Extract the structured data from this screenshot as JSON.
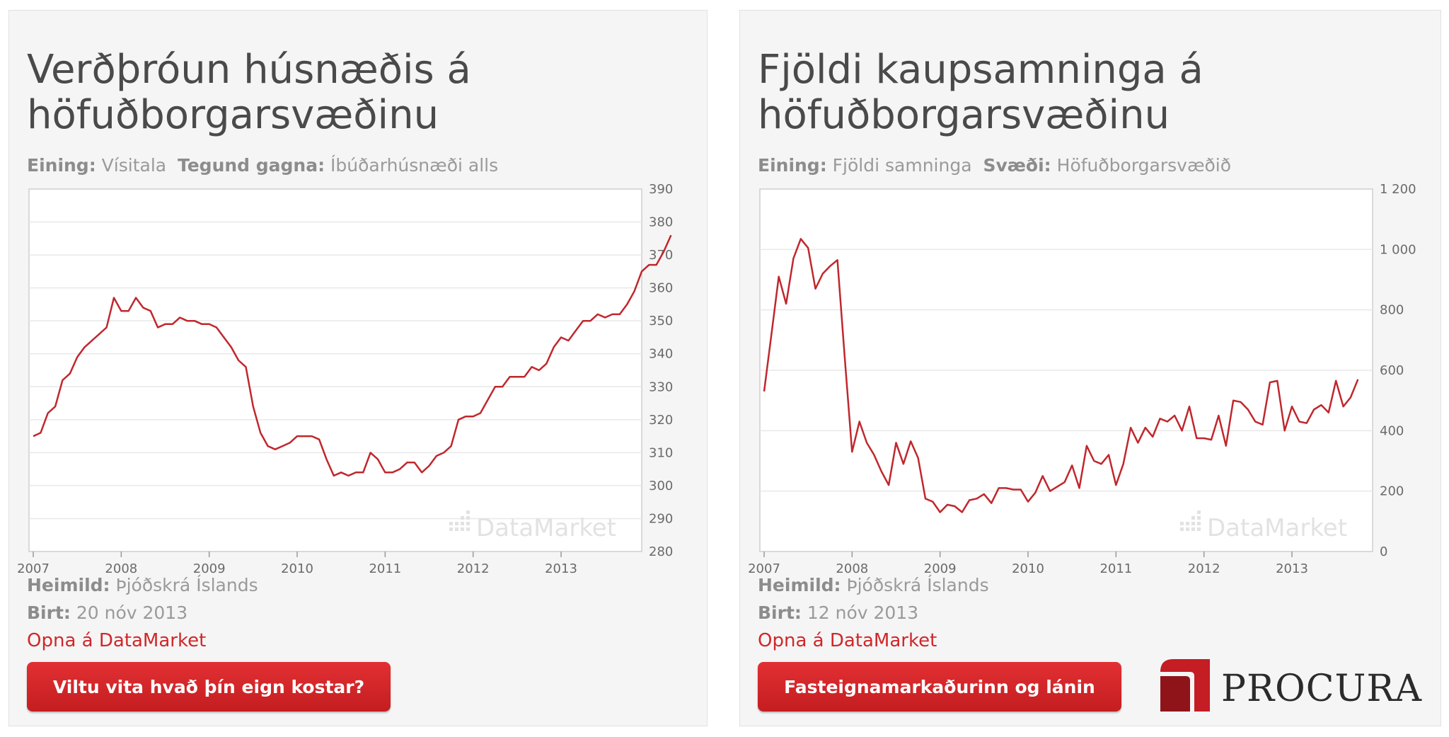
{
  "colors": {
    "accent": "#d0272a",
    "line": "#c0272d",
    "panel_bg": "#f5f5f5",
    "plot_bg": "#ffffff",
    "grid": "#e8e8e8"
  },
  "panels": [
    {
      "title_line1": "Verðþróun húsnæðis á",
      "title_line2": "höfuðborgarsvæðinu",
      "meta_label1": "Eining:",
      "meta_value1": "Vísitala",
      "meta_label2": "Tegund gagna:",
      "meta_value2": "Íbúðarhúsnæði alls",
      "source_label": "Heimild:",
      "source_value": "Þjóðskrá Íslands",
      "published_label": "Birt:",
      "published_value": "20 nóv 2013",
      "open_link": "Opna á DataMarket",
      "button_label": "Viltu vita hvað þín eign kostar?",
      "watermark": "DataMarket"
    },
    {
      "title_line1": "Fjöldi kaupsamninga á",
      "title_line2": "höfuðborgarsvæðinu",
      "meta_label1": "Eining:",
      "meta_value1": "Fjöldi samninga",
      "meta_label2": "Svæði:",
      "meta_value2": "Höfuðborgarsvæðið",
      "source_label": "Heimild:",
      "source_value": "Þjóðskrá Íslands",
      "published_label": "Birt:",
      "published_value": "12 nóv 2013",
      "open_link": "Opna á DataMarket",
      "button_label": "Fasteignamarkaðurinn og lánin",
      "watermark": "DataMarket"
    }
  ],
  "logo": {
    "text": "PROCURA"
  },
  "chart_data": [
    {
      "type": "line",
      "x_start": "2007-01",
      "x_interval": "month",
      "xtick_labels": [
        "2007",
        "2008",
        "2009",
        "2010",
        "2011",
        "2012",
        "2013"
      ],
      "ylim": [
        280,
        390
      ],
      "ytick_labels": [
        "280",
        "290",
        "300",
        "310",
        "320",
        "330",
        "340",
        "350",
        "360",
        "370",
        "380",
        "390"
      ],
      "yaxis_side": "right",
      "grid": true,
      "values": [
        315,
        316,
        322,
        324,
        332,
        334,
        339,
        342,
        344,
        346,
        348,
        357,
        353,
        353,
        357,
        354,
        353,
        348,
        349,
        349,
        351,
        350,
        350,
        349,
        349,
        348,
        345,
        342,
        338,
        336,
        324,
        316,
        312,
        311,
        312,
        313,
        315,
        315,
        315,
        314,
        308,
        303,
        304,
        303,
        304,
        304,
        310,
        308,
        304,
        304,
        305,
        307,
        307,
        304,
        306,
        309,
        310,
        312,
        320,
        321,
        321,
        322,
        326,
        330,
        330,
        333,
        333,
        333,
        336,
        335,
        337,
        342,
        345,
        344,
        347,
        350,
        350,
        352,
        351,
        352,
        352,
        355,
        359,
        365,
        367,
        367,
        371,
        376
      ]
    },
    {
      "type": "line",
      "x_start": "2007-01",
      "x_interval": "month",
      "xtick_labels": [
        "2007",
        "2008",
        "2009",
        "2010",
        "2011",
        "2012",
        "2013"
      ],
      "ylim": [
        0,
        1200
      ],
      "ytick_labels": [
        "0",
        "200",
        "400",
        "600",
        "800",
        "1 000",
        "1 200"
      ],
      "yaxis_side": "right",
      "grid": true,
      "values": [
        530,
        720,
        910,
        820,
        970,
        1035,
        1005,
        870,
        920,
        945,
        965,
        640,
        330,
        430,
        360,
        320,
        265,
        220,
        360,
        290,
        365,
        310,
        175,
        165,
        130,
        155,
        150,
        130,
        170,
        175,
        190,
        160,
        210,
        210,
        205,
        205,
        165,
        195,
        250,
        200,
        215,
        230,
        285,
        210,
        350,
        300,
        290,
        320,
        220,
        290,
        410,
        360,
        410,
        380,
        440,
        430,
        450,
        400,
        480,
        375,
        375,
        370,
        450,
        350,
        500,
        495,
        470,
        430,
        420,
        560,
        565,
        400,
        480,
        430,
        425,
        470,
        485,
        460,
        565,
        480,
        510,
        570
      ]
    }
  ]
}
